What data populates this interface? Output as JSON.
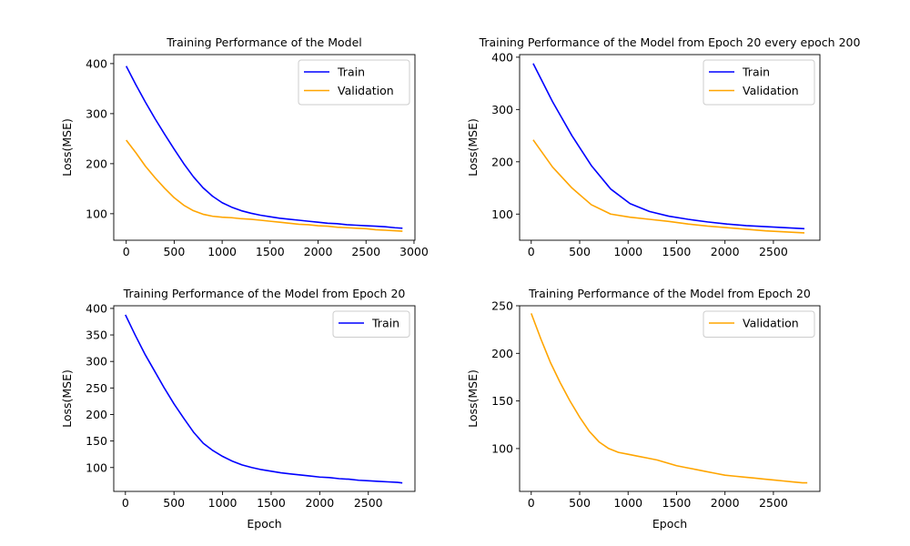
{
  "figure": {
    "background": "#ffffff",
    "colors": {
      "train": "#0000ff",
      "validation": "#ffa500",
      "axis": "#000000"
    }
  },
  "chart_data": [
    {
      "type": "line",
      "title": "Training Performance of the Model",
      "xlabel": "",
      "ylabel": "Loss(MSE)",
      "xlim": [
        -130,
        3010
      ],
      "ylim": [
        47,
        418
      ],
      "xticks": [
        0,
        500,
        1000,
        1500,
        2000,
        2500,
        3000
      ],
      "yticks": [
        100,
        200,
        300,
        400
      ],
      "grid": false,
      "legend": "top-right",
      "series": [
        {
          "name": "Train",
          "color": "#0000ff",
          "x": [
            0,
            100,
            200,
            300,
            400,
            500,
            600,
            700,
            800,
            900,
            1000,
            1100,
            1200,
            1300,
            1400,
            1500,
            1600,
            1700,
            1800,
            1900,
            2000,
            2100,
            2200,
            2300,
            2400,
            2500,
            2600,
            2700,
            2800,
            2880
          ],
          "y": [
            395,
            358,
            323,
            290,
            259,
            229,
            200,
            174,
            152,
            135,
            122,
            113,
            106,
            101,
            97,
            94,
            91,
            89,
            87,
            85,
            83,
            81,
            80,
            78,
            77,
            76,
            75,
            74,
            72,
            71
          ]
        },
        {
          "name": "Validation",
          "color": "#ffa500",
          "x": [
            0,
            100,
            200,
            300,
            400,
            500,
            600,
            700,
            800,
            900,
            1000,
            1100,
            1200,
            1300,
            1400,
            1500,
            1600,
            1700,
            1800,
            1900,
            2000,
            2100,
            2200,
            2300,
            2400,
            2500,
            2600,
            2700,
            2800,
            2880
          ],
          "y": [
            247,
            222,
            195,
            172,
            151,
            132,
            117,
            106,
            99,
            95,
            93,
            92,
            90,
            89,
            87,
            85,
            83,
            81,
            79,
            78,
            76,
            75,
            73,
            72,
            71,
            70,
            68,
            67,
            66,
            65
          ]
        }
      ]
    },
    {
      "type": "line",
      "title": "Training Performance of the Model from Epoch 20 every epoch 200",
      "xlabel": "",
      "ylabel": "Loss(MSE)",
      "xlim": [
        -120,
        2980
      ],
      "ylim": [
        50,
        405
      ],
      "xticks": [
        0,
        500,
        1000,
        1500,
        2000,
        2500
      ],
      "yticks": [
        100,
        200,
        300,
        400
      ],
      "grid": false,
      "legend": "top-right",
      "series": [
        {
          "name": "Train",
          "color": "#0000ff",
          "x": [
            20,
            220,
            420,
            620,
            820,
            1020,
            1220,
            1420,
            1620,
            1820,
            2020,
            2220,
            2420,
            2620,
            2820
          ],
          "y": [
            388,
            315,
            250,
            193,
            148,
            120,
            105,
            96,
            90,
            85,
            81,
            78,
            76,
            74,
            72
          ]
        },
        {
          "name": "Validation",
          "color": "#ffa500",
          "x": [
            20,
            220,
            420,
            620,
            820,
            1020,
            1220,
            1420,
            1620,
            1820,
            2020,
            2220,
            2420,
            2620,
            2820
          ],
          "y": [
            242,
            190,
            150,
            118,
            100,
            94,
            90,
            86,
            81,
            77,
            74,
            71,
            68,
            66,
            64
          ]
        }
      ]
    },
    {
      "type": "line",
      "title": "Training Performance of the Model from Epoch 20",
      "xlabel": "Epoch",
      "ylabel": "Loss(MSE)",
      "xlim": [
        -120,
        2980
      ],
      "ylim": [
        55,
        405
      ],
      "xticks": [
        0,
        500,
        1000,
        1500,
        2000,
        2500
      ],
      "yticks": [
        100,
        150,
        200,
        250,
        300,
        350,
        400
      ],
      "grid": false,
      "legend": "top-right",
      "series": [
        {
          "name": "Train",
          "color": "#0000ff",
          "x": [
            0,
            100,
            200,
            300,
            400,
            500,
            600,
            700,
            800,
            900,
            1000,
            1100,
            1200,
            1300,
            1400,
            1500,
            1600,
            1700,
            1800,
            1900,
            2000,
            2100,
            2200,
            2300,
            2400,
            2500,
            2600,
            2700,
            2800,
            2850
          ],
          "y": [
            388,
            350,
            314,
            282,
            250,
            220,
            193,
            167,
            146,
            132,
            121,
            112,
            105,
            100,
            96,
            93,
            90,
            88,
            86,
            84,
            82,
            81,
            79,
            78,
            76,
            75,
            74,
            73,
            72,
            71
          ]
        }
      ]
    },
    {
      "type": "line",
      "title": "Training Performance of the Model from Epoch 20",
      "xlabel": "Epoch",
      "ylabel": "Loss(MSE)",
      "xlim": [
        -120,
        2980
      ],
      "ylim": [
        55,
        250
      ],
      "xticks": [
        0,
        500,
        1000,
        1500,
        2000,
        2500
      ],
      "yticks": [
        100,
        150,
        200,
        250
      ],
      "grid": false,
      "legend": "top-right",
      "series": [
        {
          "name": "Validation",
          "color": "#ffa500",
          "x": [
            0,
            100,
            200,
            300,
            400,
            500,
            600,
            700,
            800,
            900,
            1000,
            1100,
            1200,
            1300,
            1400,
            1500,
            1600,
            1700,
            1800,
            1900,
            2000,
            2100,
            2200,
            2300,
            2400,
            2500,
            2600,
            2700,
            2800,
            2850
          ],
          "y": [
            242,
            215,
            190,
            169,
            150,
            133,
            118,
            107,
            100,
            96,
            94,
            92,
            90,
            88,
            85,
            82,
            80,
            78,
            76,
            74,
            72,
            71,
            70,
            69,
            68,
            67,
            66,
            65,
            64,
            64
          ]
        }
      ]
    }
  ]
}
